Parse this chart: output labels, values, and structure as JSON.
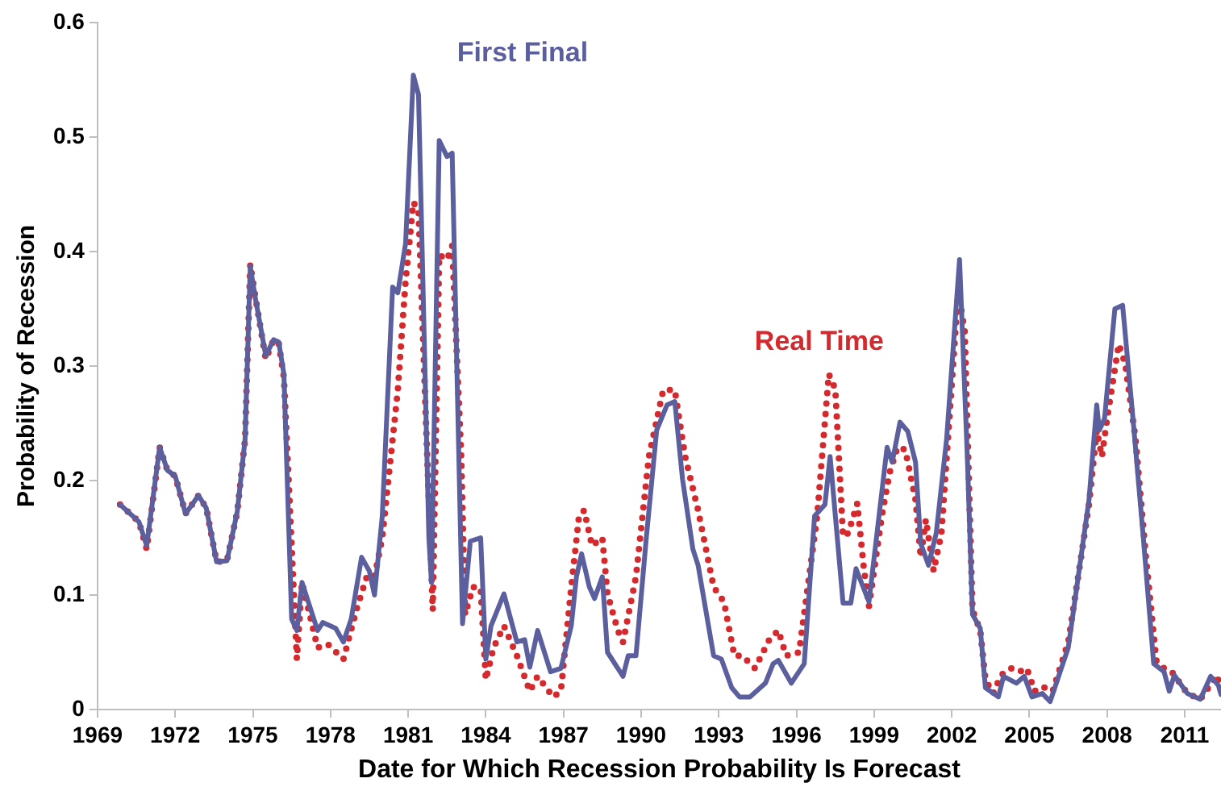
{
  "chart_data": {
    "type": "line",
    "xlabel": "Date for Which Recession Probability Is Forecast",
    "ylabel": "Probability of Recession",
    "xlim": [
      1969,
      2012.4
    ],
    "xticks": [
      1969,
      1972,
      1975,
      1978,
      1981,
      1984,
      1987,
      1990,
      1993,
      1996,
      1999,
      2002,
      2005,
      2008,
      2011
    ],
    "ylim": [
      0,
      0.6
    ],
    "yticks": [
      0,
      0.1,
      0.2,
      0.3,
      0.4,
      0.5,
      0.6
    ],
    "grid": false,
    "legend": false,
    "marker": "none",
    "series": [
      {
        "name": "First Final",
        "color": "#5b5f9e",
        "line_style": "solid",
        "x": [
          1969.87,
          1970.6,
          1970.9,
          1971.4,
          1971.7,
          1972.0,
          1972.4,
          1972.9,
          1973.2,
          1973.6,
          1974.0,
          1974.4,
          1974.7,
          1974.9,
          1975.1,
          1975.5,
          1975.8,
          1976.0,
          1976.2,
          1976.5,
          1976.7,
          1976.9,
          1977.5,
          1977.7,
          1978.2,
          1978.5,
          1978.8,
          1979.2,
          1979.5,
          1979.7,
          1980.0,
          1980.4,
          1980.6,
          1980.9,
          1981.2,
          1981.4,
          1981.8,
          1981.9,
          1982.2,
          1982.5,
          1982.7,
          1983.1,
          1983.4,
          1983.8,
          1984.0,
          1984.2,
          1984.7,
          1985.2,
          1985.5,
          1985.7,
          1986.0,
          1986.5,
          1986.9,
          1987.3,
          1987.5,
          1987.7,
          1988.0,
          1988.2,
          1988.5,
          1988.7,
          1989.3,
          1989.5,
          1989.8,
          1990.2,
          1990.6,
          1991.0,
          1991.3,
          1991.6,
          1992.0,
          1992.2,
          1992.8,
          1993.1,
          1993.5,
          1993.8,
          1994.2,
          1994.8,
          1995.1,
          1995.3,
          1995.8,
          1996.3,
          1996.7,
          1997.1,
          1997.3,
          1997.8,
          1998.1,
          1998.3,
          1998.8,
          1999.5,
          1999.7,
          2000.0,
          2000.3,
          2000.6,
          2000.8,
          2001.1,
          2001.4,
          2001.8,
          2002.3,
          2002.6,
          2002.8,
          2003.1,
          2003.3,
          2003.8,
          2004.0,
          2004.5,
          2004.8,
          2005.1,
          2005.5,
          2005.8,
          2006.5,
          2007.3,
          2007.6,
          2007.7,
          2007.9,
          2008.3,
          2008.6,
          2009.0,
          2009.4,
          2009.8,
          2010.2,
          2010.4,
          2010.6,
          2011.1,
          2011.6,
          2012.0,
          2012.3,
          2012.4
        ],
        "values": [
          0.179,
          0.164,
          0.143,
          0.229,
          0.209,
          0.204,
          0.171,
          0.187,
          0.176,
          0.129,
          0.13,
          0.173,
          0.236,
          0.387,
          0.359,
          0.309,
          0.323,
          0.321,
          0.293,
          0.079,
          0.069,
          0.111,
          0.069,
          0.076,
          0.071,
          0.059,
          0.079,
          0.133,
          0.121,
          0.1,
          0.169,
          0.369,
          0.364,
          0.407,
          0.554,
          0.537,
          0.15,
          0.111,
          0.497,
          0.483,
          0.486,
          0.075,
          0.147,
          0.15,
          0.044,
          0.073,
          0.101,
          0.059,
          0.061,
          0.037,
          0.069,
          0.033,
          0.036,
          0.073,
          0.116,
          0.136,
          0.107,
          0.097,
          0.116,
          0.05,
          0.029,
          0.047,
          0.047,
          0.15,
          0.244,
          0.266,
          0.269,
          0.201,
          0.14,
          0.126,
          0.047,
          0.044,
          0.019,
          0.011,
          0.011,
          0.023,
          0.04,
          0.043,
          0.023,
          0.04,
          0.169,
          0.179,
          0.221,
          0.093,
          0.093,
          0.123,
          0.094,
          0.229,
          0.216,
          0.251,
          0.243,
          0.216,
          0.145,
          0.126,
          0.154,
          0.236,
          0.393,
          0.221,
          0.083,
          0.071,
          0.019,
          0.011,
          0.029,
          0.023,
          0.029,
          0.011,
          0.014,
          0.007,
          0.054,
          0.183,
          0.266,
          0.244,
          0.254,
          0.35,
          0.353,
          0.254,
          0.15,
          0.04,
          0.033,
          0.016,
          0.03,
          0.014,
          0.009,
          0.029,
          0.021,
          0.013
        ]
      },
      {
        "name": "Real Time",
        "color": "#d42a2e",
        "line_style": "dotted",
        "x": [
          1969.87,
          1970.6,
          1970.9,
          1971.4,
          1971.7,
          1972.0,
          1972.4,
          1972.9,
          1973.2,
          1973.6,
          1974.0,
          1974.4,
          1974.7,
          1974.9,
          1975.1,
          1975.5,
          1975.8,
          1976.0,
          1976.2,
          1976.7,
          1976.9,
          1977.5,
          1977.9,
          1978.5,
          1979.0,
          1979.4,
          1979.7,
          1980.0,
          1980.6,
          1980.9,
          1981.2,
          1981.4,
          1981.7,
          1981.95,
          1982.2,
          1982.5,
          1982.7,
          1983.05,
          1983.2,
          1983.5,
          1983.8,
          1984.0,
          1984.3,
          1984.7,
          1985.2,
          1985.7,
          1986.0,
          1986.6,
          1986.9,
          1987.3,
          1987.6,
          1987.8,
          1988.1,
          1988.5,
          1988.7,
          1989.1,
          1989.3,
          1989.8,
          1990.3,
          1990.85,
          1991.3,
          1991.7,
          1992.2,
          1992.8,
          1993.2,
          1993.6,
          1993.9,
          1994.4,
          1994.95,
          1995.3,
          1995.6,
          1996.1,
          1996.8,
          1997.25,
          1997.5,
          1997.8,
          1998.0,
          1998.35,
          1998.6,
          1998.8,
          1999.3,
          1999.6,
          1999.9,
          2000.2,
          2000.6,
          2000.8,
          2001.0,
          2001.3,
          2001.6,
          2002.25,
          2002.5,
          2002.8,
          2003.1,
          2003.3,
          2003.6,
          2003.9,
          2004.3,
          2004.6,
          2004.9,
          2005.2,
          2005.5,
          2005.9,
          2006.5,
          2007.3,
          2007.6,
          2007.8,
          2008.0,
          2008.45,
          2008.7,
          2009.1,
          2009.5,
          2009.9,
          2010.2,
          2010.5,
          2011.1,
          2011.6,
          2012.25,
          2012.4
        ],
        "values": [
          0.179,
          0.164,
          0.14,
          0.229,
          0.209,
          0.204,
          0.171,
          0.187,
          0.176,
          0.129,
          0.13,
          0.173,
          0.236,
          0.389,
          0.36,
          0.306,
          0.323,
          0.32,
          0.29,
          0.044,
          0.111,
          0.054,
          0.057,
          0.044,
          0.087,
          0.116,
          0.116,
          0.15,
          0.279,
          0.374,
          0.443,
          0.436,
          0.244,
          0.087,
          0.397,
          0.393,
          0.405,
          0.221,
          0.083,
          0.107,
          0.106,
          0.026,
          0.054,
          0.073,
          0.047,
          0.016,
          0.029,
          0.011,
          0.016,
          0.107,
          0.169,
          0.174,
          0.143,
          0.15,
          0.101,
          0.069,
          0.059,
          0.116,
          0.221,
          0.279,
          0.279,
          0.221,
          0.174,
          0.107,
          0.094,
          0.047,
          0.047,
          0.036,
          0.061,
          0.069,
          0.047,
          0.05,
          0.169,
          0.293,
          0.28,
          0.151,
          0.154,
          0.18,
          0.124,
          0.09,
          0.169,
          0.207,
          0.229,
          0.227,
          0.183,
          0.133,
          0.166,
          0.121,
          0.154,
          0.366,
          0.33,
          0.087,
          0.069,
          0.026,
          0.014,
          0.03,
          0.036,
          0.033,
          0.036,
          0.016,
          0.02,
          0.016,
          0.059,
          0.179,
          0.244,
          0.221,
          0.254,
          0.319,
          0.302,
          0.236,
          0.133,
          0.043,
          0.036,
          0.033,
          0.014,
          0.009,
          0.03,
          0.016
        ]
      }
    ]
  }
}
